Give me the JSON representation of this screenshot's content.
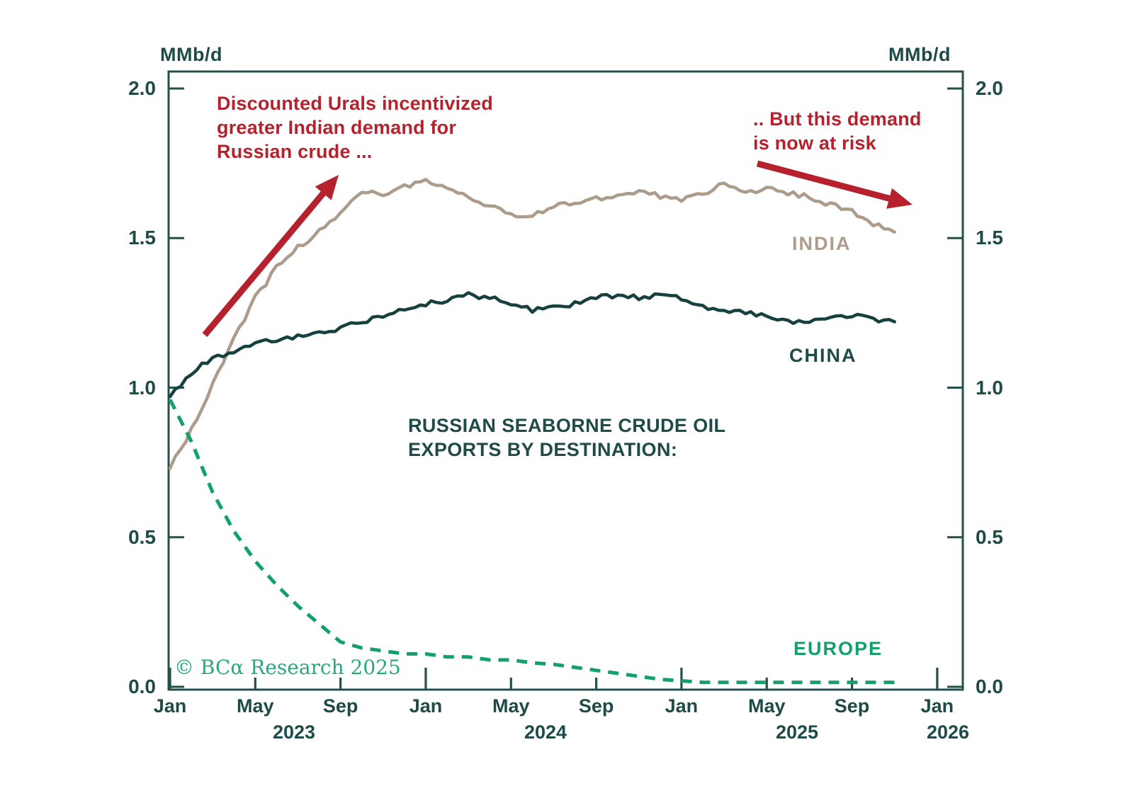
{
  "axis": {
    "unit_left": "MMb/d",
    "unit_right": "MMb/d",
    "y_tick_labels": [
      "2.0",
      "1.5",
      "1.0",
      "0.5",
      "0.0"
    ],
    "x_month_labels": [
      "Jan",
      "May",
      "Sep",
      "Jan",
      "May",
      "Sep",
      "Jan",
      "May",
      "Sep",
      "Jan"
    ],
    "x_year_labels": [
      "2023",
      "2024",
      "2025",
      "2026"
    ]
  },
  "annotations": {
    "urals": {
      "text": "Discounted Urals incentivized\ngreater Indian demand for\nRussian crude ...",
      "color": "#b5222e"
    },
    "risk": {
      "text": ".. But this demand\nis now at risk",
      "color": "#b5222e"
    }
  },
  "series_labels": {
    "india": "INDIA",
    "china": "CHINA",
    "europe": "EUROPE"
  },
  "chart_title": "RUSSIAN SEABORNE CRUDE OIL\nEXPORTS BY DESTINATION:",
  "copyright": "© BCα Research 2025",
  "colors": {
    "teal_text": "#1e4b47",
    "axis": "#24504c",
    "china": "#17413e",
    "india": "#ab9c8b",
    "europe": "#13a06b",
    "red": "#b5222e",
    "copyright_green": "#2aa77b"
  },
  "chart_data": {
    "type": "line",
    "title": "RUSSIAN SEABORNE CRUDE OIL EXPORTS BY DESTINATION:",
    "y_unit": "MMb/d",
    "ylim": [
      0,
      2.0
    ],
    "grid": false,
    "legend_position": "inline-labels",
    "x_range": [
      "2023-01",
      "2025-11"
    ],
    "x_months": [
      "2023-01",
      "2023-02",
      "2023-03",
      "2023-04",
      "2023-05",
      "2023-06",
      "2023-07",
      "2023-08",
      "2023-09",
      "2023-10",
      "2023-11",
      "2023-12",
      "2024-01",
      "2024-02",
      "2024-03",
      "2024-04",
      "2024-05",
      "2024-06",
      "2024-07",
      "2024-08",
      "2024-09",
      "2024-10",
      "2024-11",
      "2024-12",
      "2025-01",
      "2025-02",
      "2025-03",
      "2025-04",
      "2025-05",
      "2025-06",
      "2025-07",
      "2025-08",
      "2025-09",
      "2025-10",
      "2025-11"
    ],
    "series": [
      {
        "name": "INDIA",
        "color": "#ab9c8b",
        "style": "solid",
        "values": [
          0.73,
          0.86,
          1.01,
          1.16,
          1.3,
          1.4,
          1.47,
          1.52,
          1.58,
          1.66,
          1.65,
          1.67,
          1.69,
          1.67,
          1.64,
          1.61,
          1.58,
          1.57,
          1.61,
          1.62,
          1.63,
          1.64,
          1.66,
          1.64,
          1.63,
          1.65,
          1.68,
          1.65,
          1.67,
          1.65,
          1.64,
          1.61,
          1.59,
          1.55,
          1.52
        ]
      },
      {
        "name": "CHINA",
        "color": "#17413e",
        "style": "solid",
        "values": [
          0.97,
          1.05,
          1.1,
          1.12,
          1.15,
          1.16,
          1.17,
          1.18,
          1.2,
          1.22,
          1.24,
          1.26,
          1.28,
          1.29,
          1.31,
          1.3,
          1.28,
          1.26,
          1.27,
          1.28,
          1.3,
          1.31,
          1.3,
          1.31,
          1.3,
          1.27,
          1.26,
          1.25,
          1.24,
          1.22,
          1.22,
          1.23,
          1.24,
          1.23,
          1.22
        ]
      },
      {
        "name": "EUROPE",
        "color": "#13a06b",
        "style": "dashed",
        "values": [
          0.96,
          0.82,
          0.65,
          0.52,
          0.42,
          0.34,
          0.27,
          0.21,
          0.15,
          0.13,
          0.12,
          0.11,
          0.11,
          0.1,
          0.1,
          0.09,
          0.09,
          0.08,
          0.075,
          0.065,
          0.055,
          0.045,
          0.035,
          0.025,
          0.02,
          0.015,
          0.015,
          0.015,
          0.015,
          0.015,
          0.015,
          0.015,
          0.015,
          0.015,
          0.015
        ]
      }
    ]
  }
}
